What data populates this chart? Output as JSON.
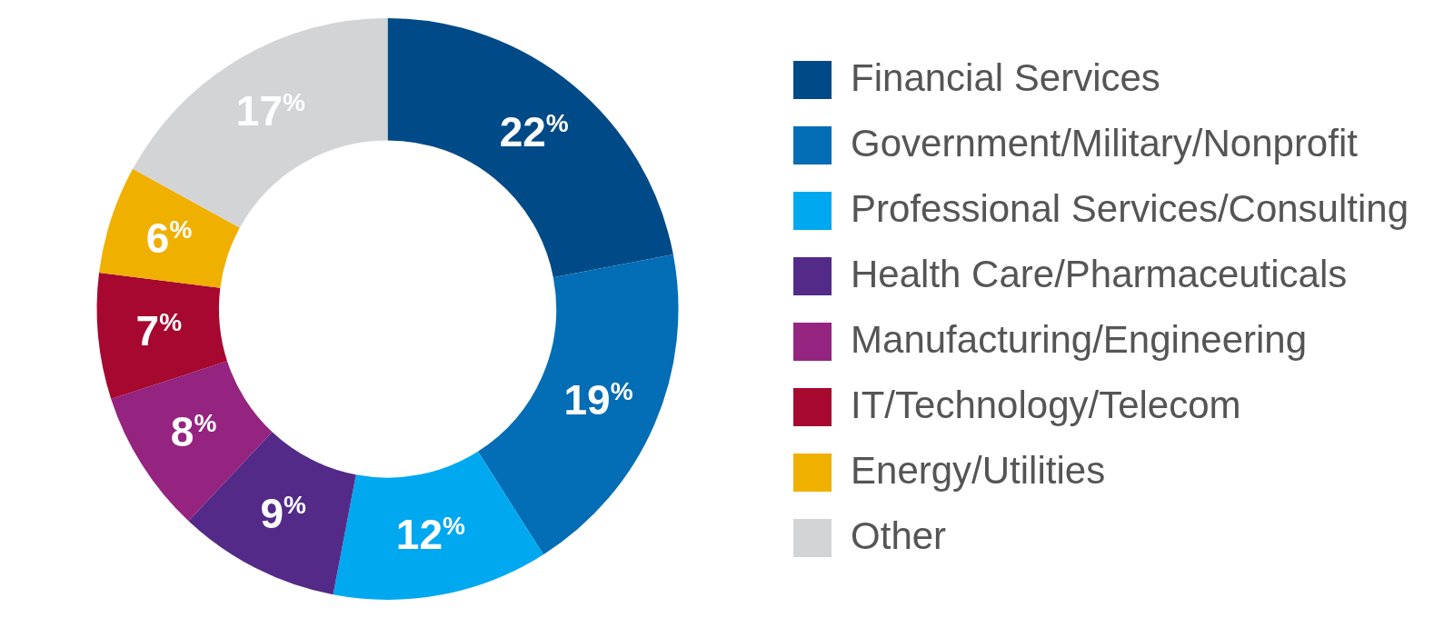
{
  "chart_data": {
    "type": "donut",
    "categories": [
      "Financial Services",
      "Government/Military/Nonprofit",
      "Professional Services/Consulting",
      "Health Care/Pharmaceuticals",
      "Manufacturing/Engineering",
      "IT/Technology/Telecom",
      "Energy/Utilities",
      "Other"
    ],
    "values": [
      22,
      19,
      12,
      9,
      8,
      7,
      6,
      17
    ],
    "colors": [
      "#004a87",
      "#036db5",
      "#00a8f0",
      "#532a87",
      "#952380",
      "#a6082f",
      "#f0b000",
      "#d3d4d6"
    ],
    "value_labels": [
      "22%",
      "19%",
      "12%",
      "9%",
      "8%",
      "7%",
      "6%",
      "17%"
    ],
    "legend": "right"
  }
}
